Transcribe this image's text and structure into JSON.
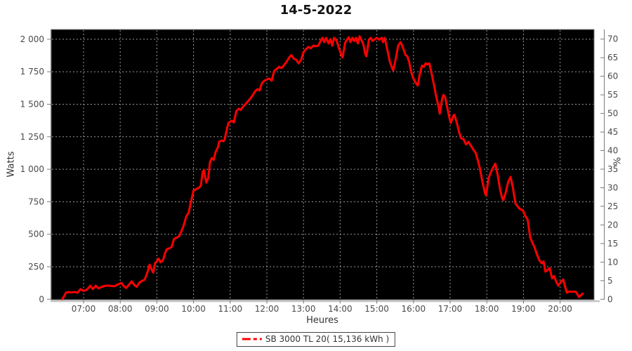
{
  "chart_data": {
    "type": "line",
    "title": "14-5-2022",
    "grid": true,
    "plot_background": "#000000",
    "line_color": "#ff0000",
    "x_axis": {
      "label": "Heures",
      "ticks": [
        "07:00",
        "08:00",
        "09:00",
        "10:00",
        "11:00",
        "12:00",
        "13:00",
        "14:00",
        "15:00",
        "16:00",
        "17:00",
        "18:00",
        "19:00",
        "20:00"
      ]
    },
    "y_axis_left": {
      "label": "Watts",
      "ticks": [
        "0",
        "250",
        "500",
        "750",
        "1 000",
        "1 250",
        "1 500",
        "1 750",
        "2 000"
      ],
      "range": [
        0,
        2075
      ]
    },
    "y_axis_right": {
      "label": "%",
      "ticks": [
        "0",
        "5",
        "10",
        "15",
        "20",
        "25",
        "30",
        "35",
        "40",
        "45",
        "50",
        "55",
        "60",
        "65",
        "70"
      ],
      "range": [
        0,
        72.5
      ]
    },
    "legend": {
      "position": "bottom",
      "entries": [
        {
          "label": "SB 3000 TL 20( 15,136 kWh )",
          "color": "#ff0000",
          "line_style": "dash-dot"
        }
      ]
    },
    "series": [
      {
        "name": "SB 3000 TL 20( 15,136 kWh )",
        "points": [
          [
            "06:25",
            0
          ],
          [
            "06:28",
            22
          ],
          [
            "06:31",
            50
          ],
          [
            "06:36",
            56
          ],
          [
            "06:40",
            52
          ],
          [
            "06:45",
            56
          ],
          [
            "06:50",
            50
          ],
          [
            "06:55",
            78
          ],
          [
            "07:00",
            64
          ],
          [
            "07:05",
            72
          ],
          [
            "07:11",
            104
          ],
          [
            "07:15",
            78
          ],
          [
            "07:20",
            104
          ],
          [
            "07:24",
            84
          ],
          [
            "07:30",
            96
          ],
          [
            "07:36",
            104
          ],
          [
            "07:43",
            104
          ],
          [
            "07:50",
            100
          ],
          [
            "07:56",
            113
          ],
          [
            "08:02",
            126
          ],
          [
            "08:06",
            100
          ],
          [
            "08:10",
            87
          ],
          [
            "08:15",
            116
          ],
          [
            "08:19",
            138
          ],
          [
            "08:23",
            110
          ],
          [
            "08:27",
            96
          ],
          [
            "08:31",
            126
          ],
          [
            "08:35",
            140
          ],
          [
            "08:40",
            150
          ],
          [
            "08:45",
            212
          ],
          [
            "08:48",
            266
          ],
          [
            "08:51",
            232
          ],
          [
            "08:54",
            205
          ],
          [
            "08:57",
            277
          ],
          [
            "09:00",
            293
          ],
          [
            "09:03",
            312
          ],
          [
            "09:06",
            284
          ],
          [
            "09:10",
            300
          ],
          [
            "09:13",
            348
          ],
          [
            "09:16",
            384
          ],
          [
            "09:20",
            391
          ],
          [
            "09:24",
            402
          ],
          [
            "09:28",
            464
          ],
          [
            "09:32",
            473
          ],
          [
            "09:36",
            483
          ],
          [
            "09:40",
            521
          ],
          [
            "09:44",
            570
          ],
          [
            "09:48",
            636
          ],
          [
            "09:52",
            666
          ],
          [
            "09:56",
            752
          ],
          [
            "10:00",
            836
          ],
          [
            "10:04",
            846
          ],
          [
            "10:08",
            856
          ],
          [
            "10:12",
            872
          ],
          [
            "10:15",
            978
          ],
          [
            "10:17",
            996
          ],
          [
            "10:19",
            941
          ],
          [
            "10:21",
            897
          ],
          [
            "10:24",
            932
          ],
          [
            "10:27",
            1058
          ],
          [
            "10:30",
            1086
          ],
          [
            "10:33",
            1072
          ],
          [
            "10:36",
            1131
          ],
          [
            "10:40",
            1170
          ],
          [
            "10:42",
            1212
          ],
          [
            "10:46",
            1221
          ],
          [
            "10:49",
            1216
          ],
          [
            "10:51",
            1231
          ],
          [
            "10:53",
            1275
          ],
          [
            "10:57",
            1356
          ],
          [
            "11:00",
            1366
          ],
          [
            "11:03",
            1374
          ],
          [
            "11:06",
            1360
          ],
          [
            "11:10",
            1447
          ],
          [
            "11:14",
            1466
          ],
          [
            "11:17",
            1456
          ],
          [
            "11:21",
            1481
          ],
          [
            "11:25",
            1501
          ],
          [
            "11:29",
            1521
          ],
          [
            "11:33",
            1545
          ],
          [
            "11:37",
            1571
          ],
          [
            "11:41",
            1601
          ],
          [
            "11:45",
            1617
          ],
          [
            "11:48",
            1606
          ],
          [
            "11:52",
            1663
          ],
          [
            "11:56",
            1681
          ],
          [
            "12:00",
            1690
          ],
          [
            "12:04",
            1698
          ],
          [
            "12:08",
            1681
          ],
          [
            "12:12",
            1756
          ],
          [
            "12:16",
            1771
          ],
          [
            "12:20",
            1788
          ],
          [
            "12:24",
            1779
          ],
          [
            "12:28",
            1801
          ],
          [
            "12:32",
            1824
          ],
          [
            "12:36",
            1856
          ],
          [
            "12:40",
            1878
          ],
          [
            "12:44",
            1851
          ],
          [
            "12:48",
            1842
          ],
          [
            "12:52",
            1815
          ],
          [
            "12:56",
            1841
          ],
          [
            "13:00",
            1901
          ],
          [
            "13:04",
            1923
          ],
          [
            "13:08",
            1941
          ],
          [
            "13:12",
            1931
          ],
          [
            "13:16",
            1951
          ],
          [
            "13:20",
            1946
          ],
          [
            "13:24",
            1951
          ],
          [
            "13:28",
            1987
          ],
          [
            "13:31",
            2011
          ],
          [
            "13:34",
            1978
          ],
          [
            "13:37",
            2011
          ],
          [
            "13:41",
            1968
          ],
          [
            "13:44",
            2001
          ],
          [
            "13:47",
            1951
          ],
          [
            "13:50",
            2011
          ],
          [
            "13:54",
            1991
          ],
          [
            "13:58",
            1931
          ],
          [
            "14:02",
            1878
          ],
          [
            "14:04",
            1860
          ],
          [
            "14:08",
            1971
          ],
          [
            "14:11",
            1996
          ],
          [
            "14:14",
            2016
          ],
          [
            "14:17",
            1978
          ],
          [
            "14:20",
            2011
          ],
          [
            "14:23",
            1986
          ],
          [
            "14:26",
            2011
          ],
          [
            "14:29",
            1968
          ],
          [
            "14:32",
            2023
          ],
          [
            "14:35",
            1991
          ],
          [
            "14:38",
            1960
          ],
          [
            "14:41",
            1887
          ],
          [
            "14:43",
            1869
          ],
          [
            "14:47",
            1996
          ],
          [
            "14:50",
            2011
          ],
          [
            "14:53",
            1987
          ],
          [
            "14:57",
            2001
          ],
          [
            "15:00",
            2011
          ],
          [
            "15:04",
            1996
          ],
          [
            "15:08",
            2011
          ],
          [
            "15:10",
            1978
          ],
          [
            "15:13",
            2011
          ],
          [
            "15:17",
            1923
          ],
          [
            "15:21",
            1833
          ],
          [
            "15:25",
            1779
          ],
          [
            "15:27",
            1761
          ],
          [
            "15:31",
            1851
          ],
          [
            "15:35",
            1951
          ],
          [
            "15:39",
            1978
          ],
          [
            "15:43",
            1933
          ],
          [
            "15:47",
            1878
          ],
          [
            "15:50",
            1869
          ],
          [
            "15:53",
            1824
          ],
          [
            "15:56",
            1752
          ],
          [
            "15:59",
            1707
          ],
          [
            "16:03",
            1671
          ],
          [
            "16:07",
            1644
          ],
          [
            "16:10",
            1725
          ],
          [
            "16:14",
            1797
          ],
          [
            "16:17",
            1788
          ],
          [
            "16:20",
            1815
          ],
          [
            "16:23",
            1806
          ],
          [
            "16:26",
            1815
          ],
          [
            "16:29",
            1752
          ],
          [
            "16:33",
            1662
          ],
          [
            "16:37",
            1563
          ],
          [
            "16:41",
            1482
          ],
          [
            "16:43",
            1428
          ],
          [
            "16:47",
            1545
          ],
          [
            "16:49",
            1572
          ],
          [
            "16:52",
            1554
          ],
          [
            "16:55",
            1482
          ],
          [
            "16:59",
            1392
          ],
          [
            "17:01",
            1356
          ],
          [
            "17:05",
            1410
          ],
          [
            "17:07",
            1419
          ],
          [
            "17:11",
            1356
          ],
          [
            "17:15",
            1281
          ],
          [
            "17:18",
            1239
          ],
          [
            "17:22",
            1231
          ],
          [
            "17:26",
            1191
          ],
          [
            "17:30",
            1211
          ],
          [
            "17:34",
            1181
          ],
          [
            "17:38",
            1151
          ],
          [
            "17:42",
            1124
          ],
          [
            "17:45",
            1077
          ],
          [
            "17:49",
            1001
          ],
          [
            "17:53",
            902
          ],
          [
            "17:57",
            816
          ],
          [
            "17:59",
            800
          ],
          [
            "18:03",
            931
          ],
          [
            "18:06",
            969
          ],
          [
            "18:10",
            1011
          ],
          [
            "18:14",
            1043
          ],
          [
            "18:18",
            951
          ],
          [
            "18:22",
            841
          ],
          [
            "18:25",
            781
          ],
          [
            "18:27",
            762
          ],
          [
            "18:31",
            821
          ],
          [
            "18:35",
            901
          ],
          [
            "18:39",
            942
          ],
          [
            "18:43",
            851
          ],
          [
            "18:47",
            735
          ],
          [
            "18:51",
            711
          ],
          [
            "18:55",
            692
          ],
          [
            "18:59",
            686
          ],
          [
            "19:03",
            641
          ],
          [
            "19:07",
            611
          ],
          [
            "19:11",
            476
          ],
          [
            "19:15",
            431
          ],
          [
            "19:18",
            402
          ],
          [
            "19:22",
            346
          ],
          [
            "19:26",
            301
          ],
          [
            "19:30",
            276
          ],
          [
            "19:33",
            291
          ],
          [
            "19:36",
            213
          ],
          [
            "19:40",
            226
          ],
          [
            "19:43",
            240
          ],
          [
            "19:47",
            161
          ],
          [
            "19:50",
            179
          ],
          [
            "19:54",
            131
          ],
          [
            "19:57",
            105
          ],
          [
            "20:01",
            131
          ],
          [
            "20:05",
            152
          ],
          [
            "20:08",
            100
          ],
          [
            "20:11",
            51
          ],
          [
            "20:15",
            60
          ],
          [
            "20:20",
            58
          ],
          [
            "20:25",
            60
          ],
          [
            "20:28",
            41
          ],
          [
            "20:31",
            17
          ],
          [
            "20:34",
            31
          ],
          [
            "20:37",
            44
          ]
        ]
      }
    ]
  }
}
